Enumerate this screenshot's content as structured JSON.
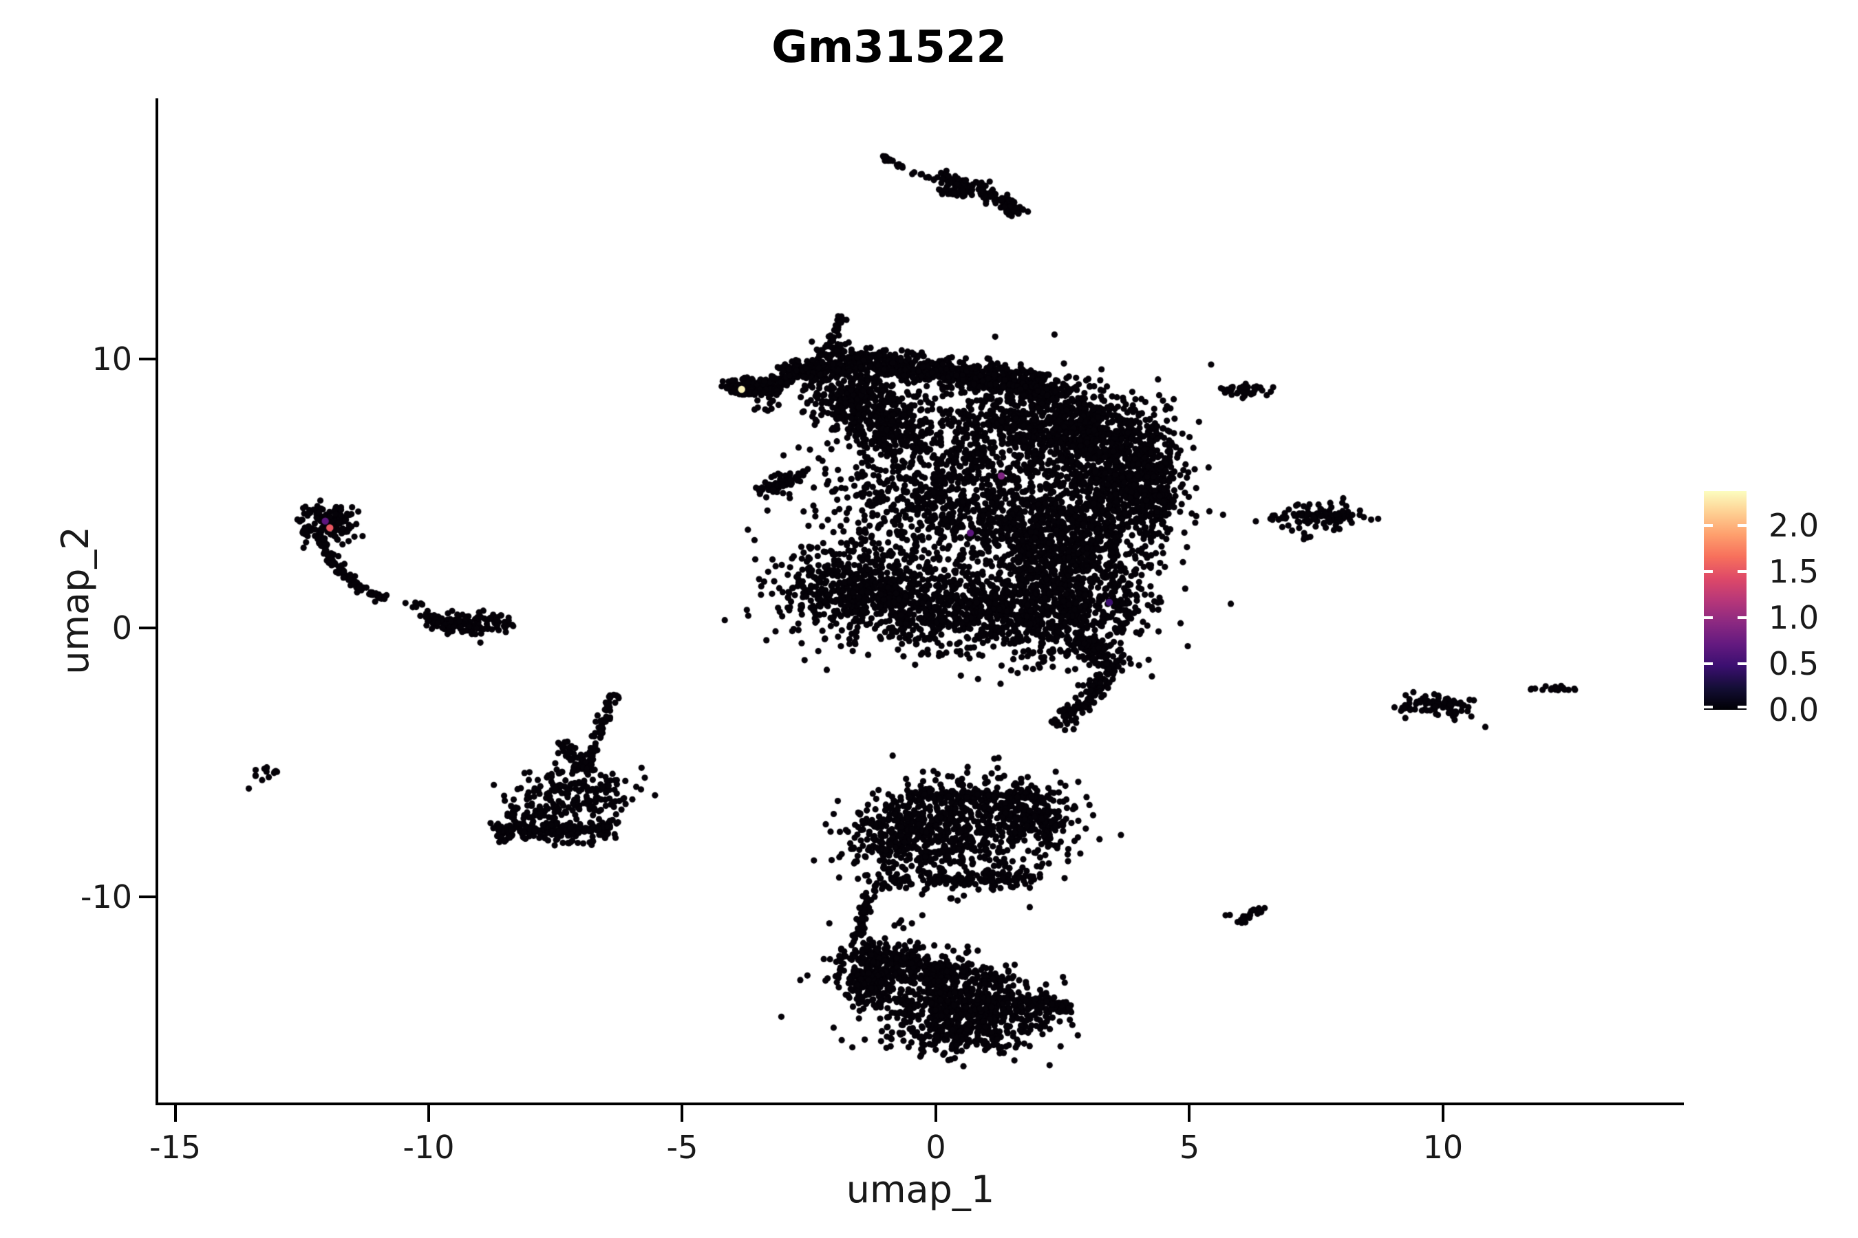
{
  "figure": {
    "background": "#ffffff",
    "axis_color": "#000000",
    "text_color": "#191919"
  },
  "chart_data": {
    "type": "scatter",
    "title": "Gm31522",
    "xlabel": "umap_1",
    "ylabel": "umap_2",
    "xlim": [
      -15.36,
      14.75
    ],
    "ylim": [
      -17.65,
      19.69
    ],
    "grid": false,
    "x_ticks": [
      {
        "value": -15,
        "label": "-15"
      },
      {
        "value": -10,
        "label": "-10"
      },
      {
        "value": -5,
        "label": "-5"
      },
      {
        "value": 0,
        "label": "0"
      },
      {
        "value": 5,
        "label": "5"
      },
      {
        "value": 10,
        "label": "10"
      }
    ],
    "y_ticks": [
      {
        "value": 10,
        "label": "10"
      },
      {
        "value": 0,
        "label": "0"
      },
      {
        "value": -10,
        "label": "-10"
      }
    ],
    "point_color": "#050208",
    "point_radius_px": 4.6,
    "colorbar": {
      "position": "right",
      "vmin": 0.0,
      "vmax": 2.37,
      "tick_labels": [
        "2.0",
        "1.5",
        "1.0",
        "0.5",
        "0.0"
      ],
      "tick_values": [
        2.0,
        1.5,
        1.0,
        0.5,
        0.0
      ],
      "gradient_bottom_to_top": [
        "#000004",
        "#140e36",
        "#3b0f70",
        "#641a80",
        "#8c2981",
        "#b73779",
        "#de4968",
        "#f7705c",
        "#fe9f6d",
        "#fecf92",
        "#fcfdbf"
      ]
    },
    "clusters": [
      {
        "t": "s",
        "x1": -4.15,
        "y1": 8.95,
        "x2": -2.95,
        "y2": 9.2,
        "w": 0.22,
        "n": 140
      },
      {
        "t": "s",
        "x1": -3.95,
        "y1": 8.7,
        "x2": -3.1,
        "y2": 8.8,
        "w": 0.12,
        "n": 40
      },
      {
        "t": "b",
        "x": -3.35,
        "y": 8.35,
        "sx": 0.25,
        "sy": 0.2,
        "n": 10
      },
      {
        "t": "s",
        "x1": -2.95,
        "y1": 9.35,
        "x2": -1.15,
        "y2": 10.05,
        "w": 0.45,
        "n": 280
      },
      {
        "t": "s",
        "x1": -2.15,
        "y1": 10.4,
        "x2": -1.85,
        "y2": 11.55,
        "w": 0.16,
        "n": 32
      },
      {
        "t": "b",
        "x": -2.05,
        "y": 10.25,
        "sx": 0.22,
        "sy": 0.18,
        "n": 24
      },
      {
        "t": "s",
        "x1": -1.2,
        "y1": 9.85,
        "x2": 0.7,
        "y2": 9.35,
        "w": 0.5,
        "n": 300
      },
      {
        "t": "s",
        "x1": 0.7,
        "y1": 9.4,
        "x2": 2.45,
        "y2": 8.75,
        "w": 0.5,
        "n": 330
      },
      {
        "t": "b",
        "x": 2.1,
        "y": 7.7,
        "sx": 0.8,
        "sy": 0.75,
        "n": 520
      },
      {
        "t": "b",
        "x": 3.3,
        "y": 6.9,
        "sx": 0.7,
        "sy": 0.85,
        "n": 470
      },
      {
        "t": "b",
        "x": 3.65,
        "y": 5.4,
        "sx": 0.55,
        "sy": 0.8,
        "n": 360
      },
      {
        "t": "b",
        "x": 4.2,
        "y": 5.7,
        "sx": 0.28,
        "sy": 0.7,
        "n": 150
      },
      {
        "t": "b",
        "x": 4.35,
        "y": 4.35,
        "sx": 0.22,
        "sy": 0.45,
        "n": 60
      },
      {
        "t": "b",
        "x": -1.6,
        "y": 8.55,
        "sx": 0.5,
        "sy": 0.55,
        "n": 230
      },
      {
        "t": "b",
        "x": -1.05,
        "y": 7.6,
        "sx": 0.5,
        "sy": 0.6,
        "n": 210
      },
      {
        "t": "b",
        "x": 0.35,
        "y": 6.6,
        "sx": 1.15,
        "sy": 1.25,
        "n": 400
      },
      {
        "t": "b",
        "x": -0.35,
        "y": 4.9,
        "sx": 1.0,
        "sy": 1.0,
        "n": 280
      },
      {
        "t": "b",
        "x": 1.15,
        "y": 4.35,
        "sx": 0.9,
        "sy": 0.95,
        "n": 300
      },
      {
        "t": "s",
        "x1": -3.55,
        "y1": 5.0,
        "x2": -2.6,
        "y2": 5.75,
        "w": 0.25,
        "n": 75
      },
      {
        "t": "b",
        "x": -2.15,
        "y": 4.3,
        "sx": 0.3,
        "sy": 0.2,
        "n": 8
      },
      {
        "t": "b",
        "x": 2.25,
        "y": 2.9,
        "sx": 0.6,
        "sy": 0.8,
        "n": 340
      },
      {
        "t": "b",
        "x": -1.7,
        "y": 1.55,
        "sx": 0.75,
        "sy": 0.85,
        "n": 430
      },
      {
        "t": "b",
        "x": -0.6,
        "y": 1.0,
        "sx": 0.8,
        "sy": 0.8,
        "n": 310
      },
      {
        "t": "b",
        "x": 0.6,
        "y": 0.6,
        "sx": 0.9,
        "sy": 0.8,
        "n": 310
      },
      {
        "t": "b",
        "x": 1.95,
        "y": 0.3,
        "sx": 0.9,
        "sy": 0.85,
        "n": 420
      },
      {
        "t": "b",
        "x": 3.05,
        "y": 1.25,
        "sx": 0.7,
        "sy": 0.8,
        "n": 310
      },
      {
        "t": "b",
        "x": 2.95,
        "y": 3.7,
        "sx": 0.9,
        "sy": 0.9,
        "n": 400
      },
      {
        "t": "s",
        "x1": 2.95,
        "y1": -0.4,
        "x2": 3.5,
        "y2": -1.7,
        "w": 0.35,
        "n": 130
      },
      {
        "t": "s",
        "x1": 3.35,
        "y1": -1.9,
        "x2": 2.6,
        "y2": -3.4,
        "w": 0.28,
        "n": 85
      },
      {
        "t": "b",
        "x": 2.5,
        "y": -3.55,
        "sx": 0.14,
        "sy": 0.14,
        "n": 14
      },
      {
        "t": "b",
        "x": 0.1,
        "y": 2.9,
        "sx": 1.5,
        "sy": 1.4,
        "n": 160
      },
      {
        "t": "s",
        "x1": -1.07,
        "y1": 17.55,
        "x2": -0.66,
        "y2": 17.12,
        "w": 0.09,
        "n": 18
      },
      {
        "t": "s",
        "x1": -0.48,
        "y1": 16.95,
        "x2": -0.02,
        "y2": 16.62,
        "w": 0.07,
        "n": 9
      },
      {
        "t": "s",
        "x1": 0.05,
        "y1": 16.8,
        "x2": 0.8,
        "y2": 16.35,
        "w": 0.2,
        "n": 55
      },
      {
        "t": "s",
        "x1": 0.8,
        "y1": 16.35,
        "x2": 1.68,
        "y2": 15.45,
        "w": 0.24,
        "n": 80
      },
      {
        "t": "s",
        "x1": 0.08,
        "y1": 16.28,
        "x2": 0.62,
        "y2": 16.08,
        "w": 0.12,
        "n": 30
      },
      {
        "t": "b",
        "x": -12.0,
        "y": 3.9,
        "sx": 0.28,
        "sy": 0.33,
        "n": 135
      },
      {
        "t": "s",
        "x1": -12.52,
        "y1": 3.55,
        "x2": -12.28,
        "y2": 3.72,
        "w": 0.1,
        "n": 14
      },
      {
        "t": "s",
        "x1": -12.12,
        "y1": 3.35,
        "x2": -11.88,
        "y2": 2.35,
        "w": 0.13,
        "n": 42
      },
      {
        "t": "s",
        "x1": -11.88,
        "y1": 2.35,
        "x2": -11.38,
        "y2": 1.5,
        "w": 0.13,
        "n": 36
      },
      {
        "t": "s",
        "x1": -11.38,
        "y1": 1.5,
        "x2": -10.85,
        "y2": 1.08,
        "w": 0.11,
        "n": 26
      },
      {
        "t": "b",
        "x": -10.3,
        "y": 0.88,
        "sx": 0.18,
        "sy": 0.09,
        "n": 7
      },
      {
        "t": "b",
        "x": -9.2,
        "y": 0.15,
        "sx": 0.38,
        "sy": 0.2,
        "n": 120
      },
      {
        "t": "b",
        "x": -9.78,
        "y": 0.35,
        "sx": 0.2,
        "sy": 0.13,
        "n": 22
      },
      {
        "t": "b",
        "x": -13.3,
        "y": -5.5,
        "sx": 0.2,
        "sy": 0.16,
        "n": 14,
        "rot": 35
      },
      {
        "t": "s",
        "x1": -6.38,
        "y1": -2.45,
        "x2": -6.72,
        "y2": -4.35,
        "w": 0.13,
        "n": 48
      },
      {
        "t": "s",
        "x1": -6.72,
        "y1": -4.35,
        "x2": -6.9,
        "y2": -5.35,
        "w": 0.16,
        "n": 30
      },
      {
        "t": "s",
        "x1": -7.32,
        "y1": -4.2,
        "x2": -7.0,
        "y2": -5.3,
        "w": 0.18,
        "n": 36
      },
      {
        "t": "b",
        "x": -7.35,
        "y": -6.0,
        "sx": 0.5,
        "sy": 0.5,
        "n": 95
      },
      {
        "t": "b",
        "x": -6.7,
        "y": -6.35,
        "sx": 0.38,
        "sy": 0.5,
        "n": 75
      },
      {
        "t": "s",
        "x1": -8.45,
        "y1": -7.55,
        "x2": -6.4,
        "y2": -7.45,
        "w": 0.3,
        "n": 170
      },
      {
        "t": "b",
        "x": -8.05,
        "y": -7.0,
        "sx": 0.35,
        "sy": 0.32,
        "n": 60
      },
      {
        "t": "b",
        "x": -8.5,
        "y": -7.6,
        "sx": 0.15,
        "sy": 0.18,
        "n": 20
      },
      {
        "t": "b",
        "x": -7.3,
        "y": -7.95,
        "sx": 0.5,
        "sy": 0.12,
        "n": 22
      },
      {
        "t": "s",
        "x1": -0.5,
        "y1": -6.2,
        "x2": 2.2,
        "y2": -6.25,
        "w": 0.28,
        "n": 130
      },
      {
        "t": "s",
        "x1": 0.45,
        "y1": -5.62,
        "x2": 0.55,
        "y2": -5.95,
        "w": 0.08,
        "n": 10
      },
      {
        "t": "b",
        "x": 0.5,
        "y": -7.6,
        "sx": 1.0,
        "sy": 0.95,
        "n": 480
      },
      {
        "t": "b",
        "x": 1.75,
        "y": -7.1,
        "sx": 0.55,
        "sy": 0.65,
        "n": 260
      },
      {
        "t": "b",
        "x": -0.65,
        "y": -7.7,
        "sx": 0.5,
        "sy": 0.75,
        "n": 260
      },
      {
        "t": "s",
        "x1": -1.15,
        "y1": -9.4,
        "x2": 2.1,
        "y2": -9.3,
        "w": 0.3,
        "n": 150
      },
      {
        "t": "s",
        "x1": -1.25,
        "y1": -9.6,
        "x2": -1.58,
        "y2": -11.6,
        "w": 0.13,
        "n": 48
      },
      {
        "t": "b",
        "x": -0.62,
        "y": -11.05,
        "sx": 0.14,
        "sy": 0.07,
        "n": 5
      },
      {
        "t": "b",
        "x": -1.05,
        "y": -12.6,
        "sx": 0.5,
        "sy": 0.55,
        "n": 230
      },
      {
        "t": "s",
        "x1": -1.5,
        "y1": -12.0,
        "x2": 1.35,
        "y2": -13.15,
        "w": 0.3,
        "n": 150
      },
      {
        "t": "b",
        "x": 0.0,
        "y": -13.6,
        "sx": 0.8,
        "sy": 0.75,
        "n": 400
      },
      {
        "t": "b",
        "x": 1.05,
        "y": -14.45,
        "sx": 0.65,
        "sy": 0.6,
        "n": 340
      },
      {
        "t": "b",
        "x": -1.35,
        "y": -13.2,
        "sx": 0.3,
        "sy": 0.4,
        "n": 95
      },
      {
        "t": "s",
        "x1": 1.75,
        "y1": -13.85,
        "x2": 2.68,
        "y2": -14.15,
        "w": 0.22,
        "n": 95
      },
      {
        "t": "b",
        "x": 0.3,
        "y": -15.25,
        "sx": 0.6,
        "sy": 0.38,
        "n": 130
      },
      {
        "t": "b",
        "x": 6.1,
        "y": 8.85,
        "sx": 0.26,
        "sy": 0.13,
        "n": 38
      },
      {
        "t": "b",
        "x": 7.55,
        "y": 4.15,
        "sx": 0.42,
        "sy": 0.22,
        "n": 105
      },
      {
        "t": "s",
        "x1": 6.6,
        "y1": 4.05,
        "x2": 7.05,
        "y2": 4.1,
        "w": 0.08,
        "n": 9
      },
      {
        "t": "b",
        "x": 7.35,
        "y": 3.32,
        "sx": 0.07,
        "sy": 0.06,
        "n": 4
      },
      {
        "t": "b",
        "x": 9.9,
        "y": -2.9,
        "sx": 0.4,
        "sy": 0.2,
        "n": 75,
        "rot": -15
      },
      {
        "t": "b",
        "x": 9.33,
        "y": -3.02,
        "sx": 0.13,
        "sy": 0.08,
        "n": 7
      },
      {
        "t": "b",
        "x": 11.75,
        "y": -2.28,
        "sx": 0.05,
        "sy": 0.05,
        "n": 3
      },
      {
        "t": "b",
        "x": 12.3,
        "y": -2.32,
        "sx": 0.17,
        "sy": 0.1,
        "n": 15
      },
      {
        "t": "s",
        "x1": 5.95,
        "y1": -10.92,
        "x2": 6.45,
        "y2": -10.4,
        "w": 0.11,
        "n": 20
      },
      {
        "t": "b",
        "x": 5.76,
        "y": -10.72,
        "sx": 0.04,
        "sy": 0.04,
        "n": 2
      }
    ],
    "highlight_points": [
      {
        "x": -3.83,
        "y": 8.87,
        "value": 2.3,
        "color": "#fbf3b9"
      },
      {
        "x": -12.04,
        "y": 3.97,
        "value": 0.8,
        "color": "#5c157e"
      },
      {
        "x": -11.95,
        "y": 3.72,
        "value": 1.5,
        "color": "#ea5762"
      },
      {
        "x": 1.29,
        "y": 5.65,
        "value": 0.9,
        "color": "#7f2482"
      },
      {
        "x": 0.68,
        "y": 3.53,
        "value": 0.8,
        "color": "#5c157e"
      },
      {
        "x": 3.42,
        "y": 0.95,
        "value": 0.5,
        "color": "#3d0f71"
      }
    ]
  }
}
